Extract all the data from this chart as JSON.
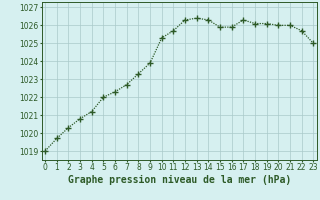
{
  "x": [
    0,
    1,
    2,
    3,
    4,
    5,
    6,
    7,
    8,
    9,
    10,
    11,
    12,
    13,
    14,
    15,
    16,
    17,
    18,
    19,
    20,
    21,
    22,
    23
  ],
  "y": [
    1019.0,
    1019.7,
    1020.3,
    1020.8,
    1021.2,
    1022.0,
    1022.3,
    1022.7,
    1023.3,
    1023.9,
    1025.3,
    1025.7,
    1026.3,
    1026.4,
    1026.3,
    1025.9,
    1025.9,
    1026.3,
    1026.1,
    1026.1,
    1026.0,
    1026.0,
    1025.7,
    1025.0
  ],
  "line_color": "#2d5a27",
  "marker": "+",
  "marker_size": 4,
  "bg_color": "#d6f0f0",
  "grid_color": "#aacaca",
  "xlabel": "Graphe pression niveau de la mer (hPa)",
  "xlabel_color": "#2d5a27",
  "xlabel_fontsize": 7,
  "ytick_min": 1019,
  "ytick_max": 1027,
  "ytick_step": 1,
  "tick_fontsize": 5.5,
  "line_width": 0.9,
  "ylim_min": 1018.5,
  "ylim_max": 1027.3
}
